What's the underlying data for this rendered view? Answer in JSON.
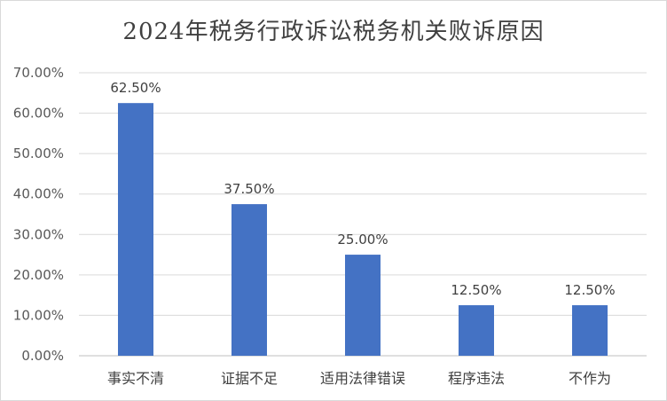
{
  "chart_data": {
    "type": "bar",
    "title": "2024年税务行政诉讼税务机关败诉原因",
    "categories": [
      "事实不清",
      "证据不足",
      "适用法律错误",
      "程序违法",
      "不作为"
    ],
    "values": [
      62.5,
      37.5,
      25.0,
      12.5,
      12.5
    ],
    "data_labels": [
      "62.50%",
      "37.50%",
      "25.00%",
      "12.50%",
      "12.50%"
    ],
    "y_ticks": [
      "0.00%",
      "10.00%",
      "20.00%",
      "30.00%",
      "40.00%",
      "50.00%",
      "60.00%",
      "70.00%"
    ],
    "ylim": [
      0,
      70
    ],
    "xlabel": "",
    "ylabel": "",
    "grid": true,
    "legend": "none",
    "bar_color": "#4472C4",
    "grid_color": "#d9d9d9"
  }
}
